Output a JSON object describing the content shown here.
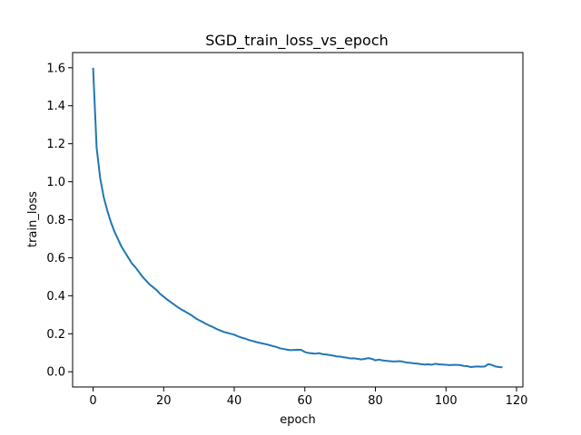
{
  "chart_data": {
    "type": "line",
    "title": "SGD_train_loss_vs_epoch",
    "xlabel": "epoch",
    "ylabel": "train_loss",
    "xlim": [
      -5.8,
      121.8
    ],
    "ylim": [
      -0.08,
      1.68
    ],
    "xticks": [
      0,
      20,
      40,
      60,
      80,
      100,
      120
    ],
    "yticks": [
      0.0,
      0.2,
      0.4,
      0.6,
      0.8,
      1.0,
      1.2,
      1.4,
      1.6
    ],
    "ytick_labels": [
      "0.0",
      "0.2",
      "0.4",
      "0.6",
      "0.8",
      "1.0",
      "1.2",
      "1.4",
      "1.6"
    ],
    "grid": false,
    "line_color": "#1f77b4",
    "series": [
      {
        "x": [
          0,
          1,
          2,
          3,
          4,
          5,
          6,
          7,
          8,
          9,
          10,
          11,
          12,
          13,
          14,
          15,
          16,
          17,
          18,
          19,
          20,
          21,
          22,
          23,
          24,
          25,
          26,
          27,
          28,
          29,
          30,
          31,
          32,
          33,
          34,
          35,
          36,
          37,
          38,
          39,
          40,
          41,
          42,
          43,
          44,
          45,
          46,
          47,
          48,
          49,
          50,
          51,
          52,
          53,
          54,
          55,
          56,
          57,
          58,
          59,
          60,
          61,
          62,
          63,
          64,
          65,
          66,
          67,
          68,
          69,
          70,
          71,
          72,
          73,
          74,
          75,
          76,
          77,
          78,
          79,
          80,
          81,
          82,
          83,
          84,
          85,
          86,
          87,
          88,
          89,
          90,
          91,
          92,
          93,
          94,
          95,
          96,
          97,
          98,
          99,
          100,
          101,
          102,
          103,
          104,
          105,
          106,
          107,
          108,
          109,
          110,
          111,
          112,
          113,
          114,
          115,
          116
        ],
        "y": [
          1.6,
          1.18,
          1.02,
          0.92,
          0.85,
          0.79,
          0.74,
          0.7,
          0.66,
          0.63,
          0.6,
          0.57,
          0.55,
          0.525,
          0.5,
          0.48,
          0.46,
          0.445,
          0.43,
          0.41,
          0.395,
          0.38,
          0.367,
          0.353,
          0.34,
          0.328,
          0.318,
          0.307,
          0.296,
          0.282,
          0.272,
          0.262,
          0.252,
          0.243,
          0.235,
          0.225,
          0.218,
          0.21,
          0.205,
          0.2,
          0.195,
          0.187,
          0.18,
          0.175,
          0.168,
          0.163,
          0.158,
          0.153,
          0.149,
          0.145,
          0.14,
          0.135,
          0.13,
          0.123,
          0.12,
          0.116,
          0.114,
          0.115,
          0.116,
          0.115,
          0.104,
          0.099,
          0.097,
          0.095,
          0.098,
          0.093,
          0.091,
          0.088,
          0.085,
          0.081,
          0.08,
          0.076,
          0.074,
          0.07,
          0.071,
          0.068,
          0.065,
          0.068,
          0.072,
          0.068,
          0.06,
          0.064,
          0.06,
          0.058,
          0.056,
          0.054,
          0.055,
          0.056,
          0.052,
          0.048,
          0.047,
          0.044,
          0.043,
          0.04,
          0.038,
          0.039,
          0.037,
          0.042,
          0.039,
          0.038,
          0.037,
          0.035,
          0.036,
          0.036,
          0.035,
          0.031,
          0.03,
          0.025,
          0.027,
          0.028,
          0.027,
          0.028,
          0.04,
          0.036,
          0.028,
          0.025,
          0.024
        ]
      }
    ]
  }
}
